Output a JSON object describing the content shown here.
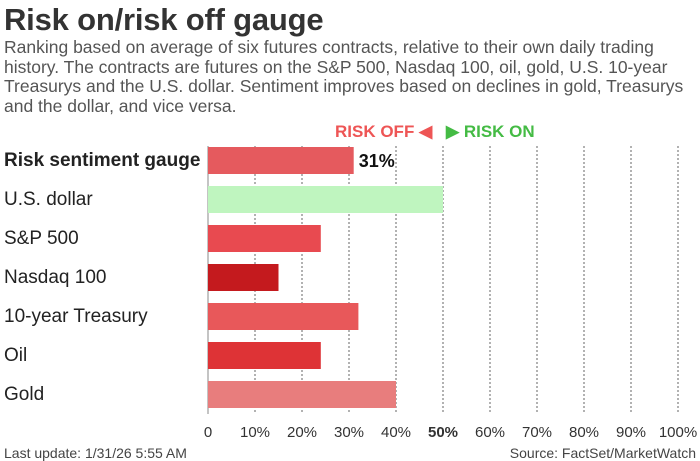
{
  "header": {
    "title": "Risk on/risk off gauge",
    "subtitle": "Ranking based on average of six futures contracts, relative to their own daily trading history. The contracts are futures on the S&P 500, Nasdaq 100, oil, gold, U.S. 10-year Treasurys and the U.S. dollar. Sentiment improves based on declines in gold, Treasurys and the dollar, and vice versa."
  },
  "legend": {
    "risk_off": "RISK OFF",
    "risk_on": "RISK ON",
    "risk_off_color": "#ee5555",
    "risk_on_color": "#44bb44",
    "risk_off_icon": "left-triangle-icon",
    "risk_on_icon": "right-triangle-icon"
  },
  "footer": {
    "last_update": "Last update: 1/31/26 5:55 AM",
    "source": "Source: FactSet/MarketWatch"
  },
  "chart_data": {
    "type": "bar",
    "orientation": "horizontal",
    "categories": [
      "Risk sentiment gauge",
      "U.S. dollar",
      "S&P 500",
      "Nasdaq 100",
      "10-year Treasury",
      "Oil",
      "Gold"
    ],
    "values": [
      31,
      50,
      24,
      15,
      32,
      24,
      40
    ],
    "colors": [
      "#e55a5e",
      "#bff5bf",
      "#e84a50",
      "#c41a1e",
      "#e8585a",
      "#de3336",
      "#e87d7d"
    ],
    "value_labels": [
      "31%",
      "",
      "",
      "",
      "",
      "",
      ""
    ],
    "xlim": [
      0,
      100
    ],
    "x_ticks": [
      "0",
      "10%",
      "20%",
      "30%",
      "40%",
      "50%",
      "60%",
      "70%",
      "80%",
      "90%",
      "100%"
    ],
    "x_tick_bold": "50%",
    "grid": "vertical dotted"
  }
}
